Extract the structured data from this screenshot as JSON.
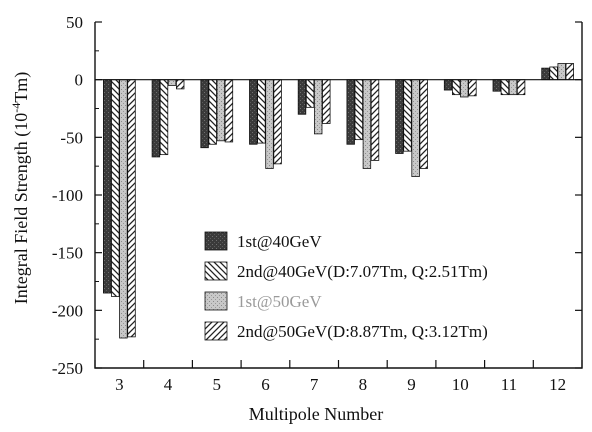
{
  "chart_data": {
    "type": "bar",
    "xlabel": "Multipole Number",
    "ylabel": "Integral Field Strength (10",
    "ylabel_exponent": "-4",
    "ylabel_unit": "Tm)",
    "categories": [
      "3",
      "4",
      "5",
      "6",
      "7",
      "8",
      "9",
      "10",
      "11",
      "12"
    ],
    "ylim": [
      -250,
      50
    ],
    "yticks": [
      "50",
      "0",
      "-50",
      "-100",
      "-150",
      "-200",
      "-250"
    ],
    "grid": false,
    "legend_position": "bottom-right",
    "series": [
      {
        "name": "1st@40GeV",
        "pattern": "solid-dark",
        "values": [
          -185,
          -67,
          -59,
          -56,
          -30,
          -56,
          -64,
          -9,
          -10,
          10
        ]
      },
      {
        "name": "2nd@40GeV(D:7.07Tm, Q:2.51Tm)",
        "pattern": "backslash-hatch",
        "values": [
          -188,
          -65,
          -56,
          -55,
          -24,
          -52,
          -62,
          -13,
          -13,
          11
        ]
      },
      {
        "name": "1st@50GeV",
        "pattern": "light-dotted",
        "values": [
          -224,
          -5,
          -53,
          -77,
          -47,
          -77,
          -84,
          -15,
          -13,
          14
        ]
      },
      {
        "name": "2nd@50GeV(D:8.87Tm, Q:3.12Tm)",
        "pattern": "slash-hatch",
        "values": [
          -223,
          -8,
          -54,
          -73,
          -38,
          -70,
          -77,
          -14,
          -13,
          14
        ]
      }
    ]
  },
  "colors": {
    "axis": "#111111",
    "solid_dark": "#3a3a3a",
    "dotted_light": "#b5b5b5",
    "hatch": "#222222"
  }
}
